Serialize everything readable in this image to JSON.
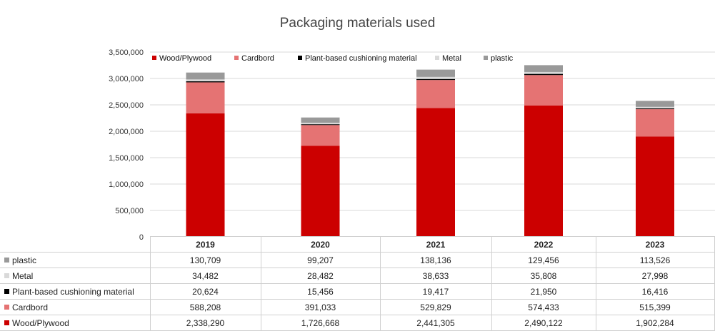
{
  "chart_data": {
    "type": "bar",
    "stacked": true,
    "title": "Packaging materials used",
    "categories": [
      "2019",
      "2020",
      "2021",
      "2022",
      "2023"
    ],
    "ylim": [
      0,
      3500000
    ],
    "yticks": [
      0,
      500000,
      1000000,
      1500000,
      2000000,
      2500000,
      3000000,
      3500000
    ],
    "ytick_labels": [
      "0",
      "500,000",
      "1,000,000",
      "1,500,000",
      "2,000,000",
      "2,500,000",
      "3,000,000",
      "3,500,000"
    ],
    "grid": true,
    "legend_position": "top",
    "series": [
      {
        "name": "Wood/Plywood",
        "color": "#cc0000",
        "values": [
          2338290,
          1726668,
          2441305,
          2490122,
          1902284
        ],
        "labels": [
          "2,338,290",
          "1,726,668",
          "2,441,305",
          "2,490,122",
          "1,902,284"
        ]
      },
      {
        "name": "Cardbord",
        "color": "#e57373",
        "values": [
          588208,
          391033,
          529829,
          574433,
          515399
        ],
        "labels": [
          "588,208",
          "391,033",
          "529,829",
          "574,433",
          "515,399"
        ]
      },
      {
        "name": "Plant-based cushioning material",
        "color": "#000000",
        "values": [
          20624,
          15456,
          19417,
          21950,
          16416
        ],
        "labels": [
          "20,624",
          "15,456",
          "19,417",
          "21,950",
          "16,416"
        ]
      },
      {
        "name": "Metal",
        "color": "#d9d9d9",
        "values": [
          34482,
          28482,
          38633,
          35808,
          27998
        ],
        "labels": [
          "34,482",
          "28,482",
          "38,633",
          "35,808",
          "27,998"
        ]
      },
      {
        "name": "plastic",
        "color": "#999999",
        "values": [
          130709,
          99207,
          138136,
          129456,
          113526
        ],
        "labels": [
          "130,709",
          "99,207",
          "138,136",
          "129,456",
          "113,526"
        ]
      }
    ],
    "table_row_order": [
      "plastic",
      "Metal",
      "Plant-based cushioning material",
      "Cardbord",
      "Wood/Plywood"
    ]
  }
}
